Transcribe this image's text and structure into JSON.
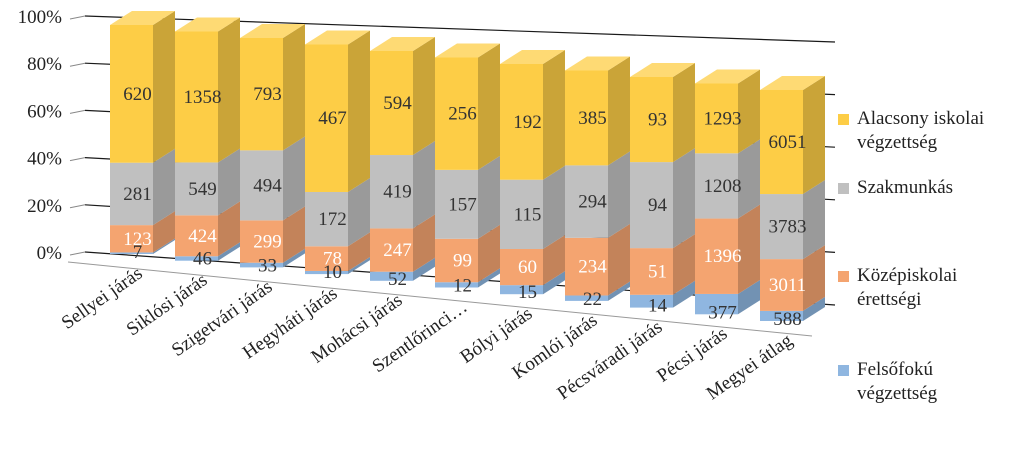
{
  "chart_data": {
    "type": "bar",
    "stacked": "percent",
    "three_d": true,
    "categories": [
      "Sellyei járás",
      "Siklósi járás",
      "Szigetvári járás",
      "Hegyháti járás",
      "Mohácsi járás",
      "Szentlőrinci…",
      "Bólyi járás",
      "Komlói járás",
      "Pécsváradi járás",
      "Pécsi járás",
      "Megyei átlag"
    ],
    "series": [
      {
        "name": "Felsőfokú végzettség",
        "color": "#8fb6e0",
        "values": [
          7,
          46,
          33,
          10,
          52,
          12,
          15,
          22,
          14,
          377,
          588
        ]
      },
      {
        "name": "Középiskolai érettségi",
        "color": "#f4a470",
        "values": [
          123,
          424,
          299,
          78,
          247,
          99,
          60,
          234,
          51,
          1396,
          3011
        ]
      },
      {
        "name": "Szakmunkás",
        "color": "#c0c0c0",
        "values": [
          281,
          549,
          494,
          172,
          419,
          157,
          115,
          294,
          94,
          1208,
          3783
        ]
      },
      {
        "name": "Alacsony iskolai végzettség",
        "color": "#fdcd46",
        "values": [
          620,
          1358,
          793,
          467,
          594,
          256,
          192,
          385,
          93,
          1293,
          6051
        ]
      }
    ],
    "y_ticks": [
      "0%",
      "20%",
      "40%",
      "60%",
      "80%",
      "100%"
    ],
    "ylim": [
      0,
      100
    ],
    "grid": true,
    "legend_position": "right"
  }
}
